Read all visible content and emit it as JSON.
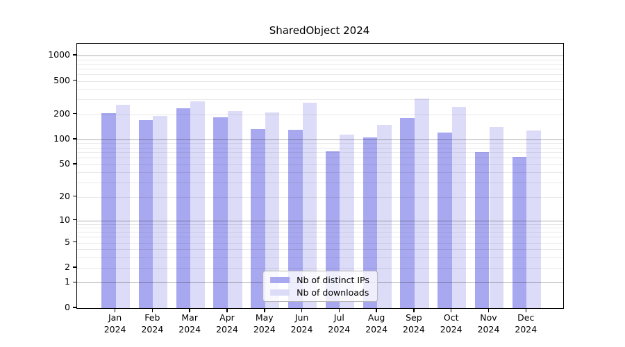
{
  "title": "SharedObject 2024",
  "chart_data": {
    "type": "bar",
    "title": "SharedObject 2024",
    "categories": [
      "Jan",
      "Feb",
      "Mar",
      "Apr",
      "May",
      "Jun",
      "Jul",
      "Aug",
      "Sep",
      "Oct",
      "Nov",
      "Dec"
    ],
    "category_year": "2024",
    "series": [
      {
        "name": "Nb of distinct IPs",
        "color": "#a8a8f0",
        "values": [
          205,
          170,
          235,
          185,
          133,
          130,
          72,
          106,
          182,
          120,
          70,
          62
        ]
      },
      {
        "name": "Nb of downloads",
        "color": "#dcdcf8",
        "values": [
          260,
          190,
          285,
          220,
          210,
          275,
          115,
          150,
          310,
          245,
          142,
          128
        ]
      }
    ],
    "y_axis": {
      "scale": "log1p",
      "ticks": [
        0,
        1,
        2,
        5,
        10,
        20,
        50,
        100,
        200,
        500,
        1000
      ],
      "max": 1385
    },
    "x_axis": {
      "label_lines": 2
    },
    "legend": {
      "position": "lower center"
    },
    "grid": {
      "major_color": "rgba(0,0,0,0.33)",
      "minor_color": "rgba(0,0,0,0.085)",
      "over_bars": true
    }
  }
}
